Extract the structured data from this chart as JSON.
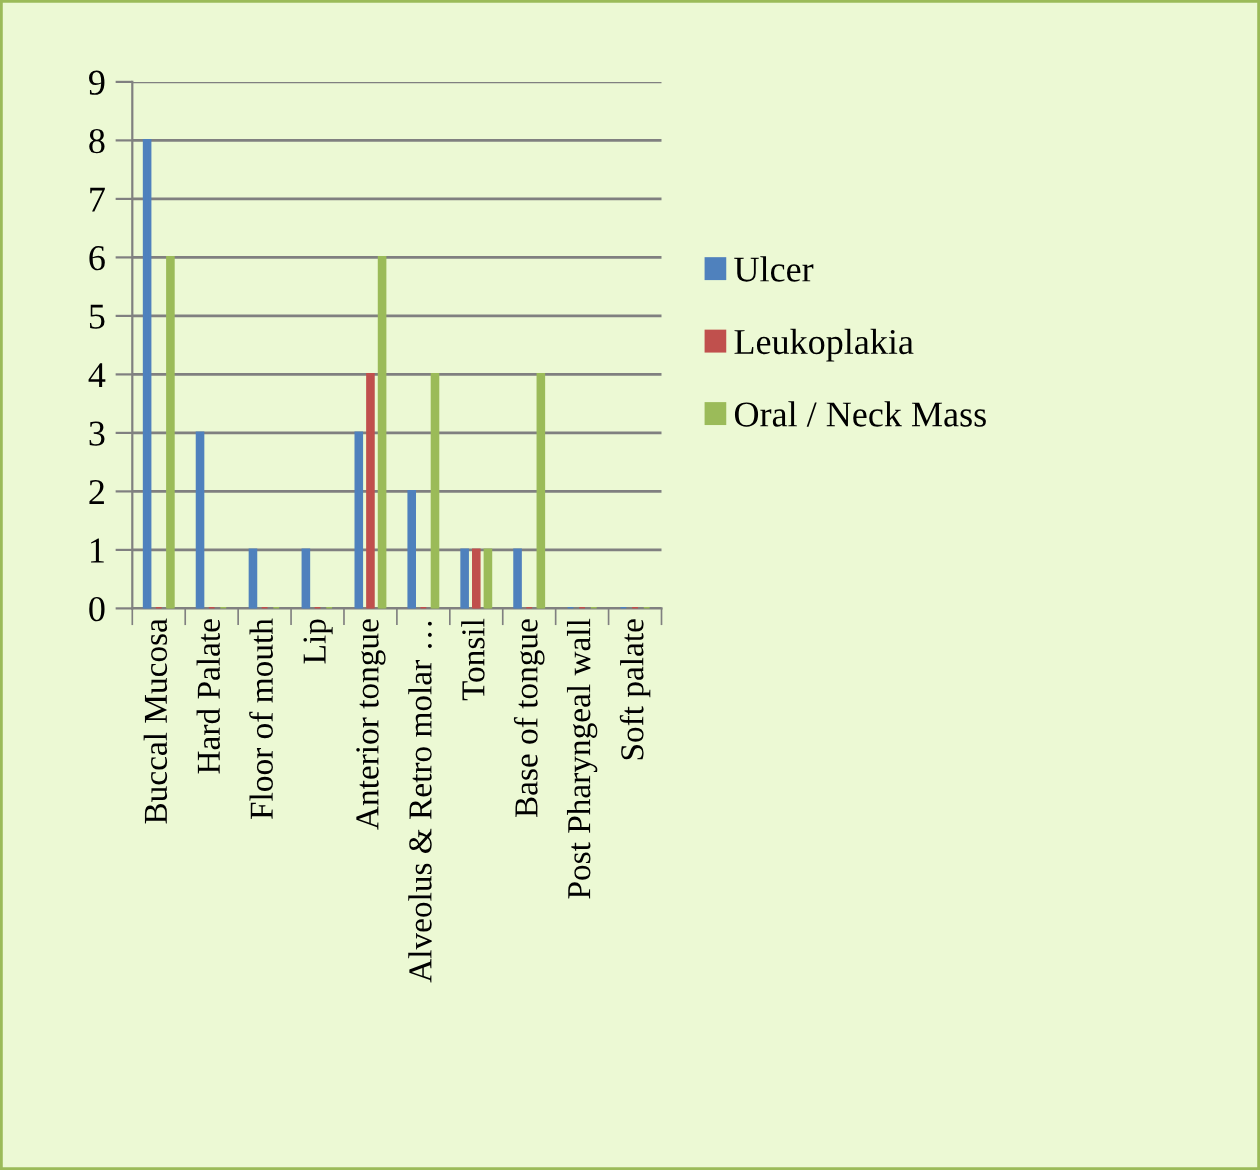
{
  "chart_data": {
    "type": "bar",
    "categories": [
      "Buccal Mucosa",
      "Hard Palate",
      "Floor of mouth",
      "Lip",
      "Anterior tongue",
      "Alveolus & Retro molar …",
      "Tonsil",
      "Base of tongue",
      "Post Pharyngeal wall",
      "Soft palate"
    ],
    "series": [
      {
        "name": "Ulcer",
        "color": "#4f81bd",
        "values": [
          8,
          3,
          1,
          1,
          3,
          2,
          1,
          1,
          0,
          0
        ]
      },
      {
        "name": "Leukoplakia",
        "color": "#c0504d",
        "values": [
          0,
          0,
          0,
          0,
          4,
          0,
          1,
          0,
          0,
          0
        ]
      },
      {
        "name": "Oral / Neck Mass",
        "color": "#9bbb59",
        "values": [
          6,
          0,
          0,
          0,
          6,
          4,
          1,
          4,
          0,
          0
        ]
      }
    ],
    "ylim": [
      0,
      9
    ],
    "yticks": [
      0,
      1,
      2,
      3,
      4,
      5,
      6,
      7,
      8,
      9
    ],
    "grid": "y",
    "legend": "right"
  }
}
